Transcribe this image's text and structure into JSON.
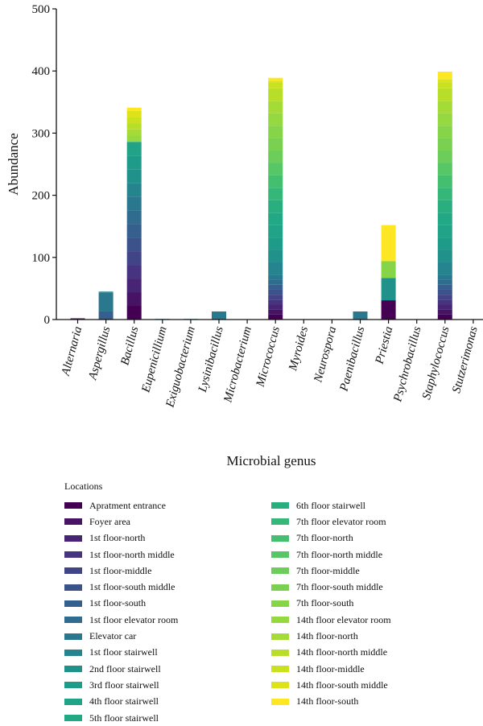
{
  "chart_data": {
    "type": "bar",
    "stacked": true,
    "xlabel": "Microbial genus",
    "ylabel": "Abundance",
    "ylim": [
      0,
      500
    ],
    "yticks": [
      0,
      100,
      200,
      300,
      400,
      500
    ],
    "categories": [
      "Alternaria",
      "Aspergillus",
      "Bacillus",
      "Eupenicillium",
      "Exiguobacterium",
      "Lysinibacillus",
      "Microbacterium",
      "Micrococcus",
      "Myroides",
      "Neurospora",
      "Paenibacillus",
      "Priestia",
      "Psychrobacillus",
      "Staphylococcus",
      "Stutzerimonas"
    ],
    "legend_title": "Locations",
    "series": [
      {
        "name": "Apratment entrance",
        "color": "#440154",
        "values": [
          0,
          0,
          22,
          0,
          0,
          0,
          0,
          8,
          0,
          0,
          0,
          31,
          0,
          8,
          0
        ]
      },
      {
        "name": "Foyer area",
        "color": "#471365",
        "values": [
          2,
          0,
          22,
          0,
          0,
          0,
          0,
          8,
          0,
          0,
          0,
          0,
          0,
          8,
          0
        ]
      },
      {
        "name": "1st floor-north",
        "color": "#482475",
        "values": [
          0,
          0,
          22,
          0,
          0,
          0,
          0,
          8,
          0,
          0,
          0,
          0,
          0,
          8,
          0
        ]
      },
      {
        "name": "1st floor-north middle",
        "color": "#463480",
        "values": [
          0,
          0,
          22,
          0,
          0,
          0,
          0,
          8,
          0,
          0,
          0,
          0,
          0,
          8,
          0
        ]
      },
      {
        "name": "1st floor-middle",
        "color": "#414487",
        "values": [
          0,
          0,
          22,
          0,
          0,
          0,
          0,
          8,
          0,
          0,
          0,
          0,
          0,
          8,
          0
        ]
      },
      {
        "name": "1st floor-south middle",
        "color": "#3b528b",
        "values": [
          0,
          0,
          22,
          0,
          0,
          0,
          0,
          8,
          0,
          0,
          0,
          0,
          0,
          8,
          0
        ]
      },
      {
        "name": "1st floor-south",
        "color": "#355f8d",
        "values": [
          0,
          13,
          22,
          0,
          0,
          0,
          0,
          8,
          0,
          0,
          0,
          0,
          0,
          8,
          0
        ]
      },
      {
        "name": "1st floor elevator room",
        "color": "#2f6c8e",
        "values": [
          0,
          0,
          22,
          0,
          0,
          0,
          0,
          8,
          0,
          0,
          0,
          0,
          0,
          8,
          0
        ]
      },
      {
        "name": "Elevator car",
        "color": "#2a788e",
        "values": [
          0,
          30,
          22,
          0,
          0,
          13,
          0,
          8,
          0,
          0,
          13,
          0,
          0,
          8,
          0
        ]
      },
      {
        "name": "1st floor stairwell",
        "color": "#25848e",
        "values": [
          0,
          2,
          22,
          1,
          1,
          0,
          0,
          20,
          0,
          0,
          0,
          0,
          0,
          20,
          0
        ]
      },
      {
        "name": "2nd floor stairwell",
        "color": "#21918c",
        "values": [
          0,
          0,
          22,
          0,
          0,
          0,
          0,
          20,
          0,
          0,
          0,
          36,
          0,
          20,
          0
        ]
      },
      {
        "name": "3rd floor stairwell",
        "color": "#1e9c89",
        "values": [
          0,
          0,
          22,
          0,
          0,
          0,
          0,
          20,
          0,
          0,
          0,
          0,
          0,
          20,
          0
        ]
      },
      {
        "name": "4th floor stairwell",
        "color": "#20a386",
        "values": [
          0,
          0,
          22,
          0,
          0,
          0,
          0,
          20,
          0,
          0,
          0,
          0,
          0,
          20,
          0
        ]
      },
      {
        "name": "5th floor stairwell",
        "color": "#22a884",
        "values": [
          0,
          0,
          0,
          0,
          0,
          0,
          0,
          20,
          0,
          0,
          0,
          0,
          0,
          20,
          0
        ]
      },
      {
        "name": "6th floor stairwell",
        "color": "#29af7f",
        "values": [
          0,
          0,
          0,
          0,
          0,
          0,
          0,
          20,
          0,
          0,
          0,
          0,
          0,
          20,
          0
        ]
      },
      {
        "name": "7th floor elevator room",
        "color": "#35b779",
        "values": [
          0,
          0,
          0,
          0,
          0,
          0,
          0,
          20,
          0,
          0,
          0,
          0,
          0,
          20,
          0
        ]
      },
      {
        "name": "7th floor-north",
        "color": "#44bf70",
        "values": [
          0,
          0,
          0,
          0,
          0,
          0,
          0,
          20,
          0,
          0,
          0,
          0,
          0,
          20,
          0
        ]
      },
      {
        "name": "7th floor-north middle",
        "color": "#56c667",
        "values": [
          0,
          0,
          0,
          0,
          0,
          0,
          0,
          20,
          0,
          0,
          0,
          0,
          0,
          20,
          0
        ]
      },
      {
        "name": "7th floor-middle",
        "color": "#6ccd5a",
        "values": [
          0,
          0,
          0,
          0,
          0,
          0,
          0,
          20,
          0,
          0,
          0,
          0,
          0,
          20,
          0
        ]
      },
      {
        "name": "7th floor-south middle",
        "color": "#7ad151",
        "values": [
          0,
          0,
          0,
          0,
          0,
          0,
          0,
          20,
          0,
          0,
          0,
          0,
          0,
          20,
          0
        ]
      },
      {
        "name": "7th floor-south",
        "color": "#86d549",
        "values": [
          0,
          0,
          0,
          0,
          0,
          0,
          0,
          20,
          0,
          0,
          0,
          27,
          0,
          20,
          0
        ]
      },
      {
        "name": "14th floor elevator room",
        "color": "#95d840",
        "values": [
          0,
          0,
          10,
          0,
          0,
          0,
          0,
          20,
          0,
          0,
          0,
          0,
          0,
          20,
          0
        ]
      },
      {
        "name": "14th floor-north",
        "color": "#a5db36",
        "values": [
          0,
          0,
          10,
          0,
          0,
          0,
          0,
          20,
          0,
          0,
          0,
          0,
          0,
          20,
          0
        ]
      },
      {
        "name": "14th floor-north middle",
        "color": "#b8de29",
        "values": [
          0,
          0,
          10,
          0,
          0,
          0,
          0,
          20,
          0,
          0,
          0,
          0,
          0,
          20,
          0
        ]
      },
      {
        "name": "14th floor-middle",
        "color": "#cae11f",
        "values": [
          0,
          0,
          10,
          0,
          0,
          0,
          0,
          10,
          0,
          0,
          0,
          0,
          0,
          10,
          0
        ]
      },
      {
        "name": "14th floor-south middle",
        "color": "#dde318",
        "values": [
          0,
          0,
          10,
          0,
          0,
          0,
          0,
          2,
          0,
          0,
          0,
          0,
          0,
          5,
          0
        ]
      },
      {
        "name": "14th floor-south",
        "color": "#fde725",
        "values": [
          0,
          0,
          5,
          0,
          0,
          0,
          0,
          5,
          0,
          0,
          0,
          58,
          0,
          12,
          0
        ]
      }
    ]
  }
}
